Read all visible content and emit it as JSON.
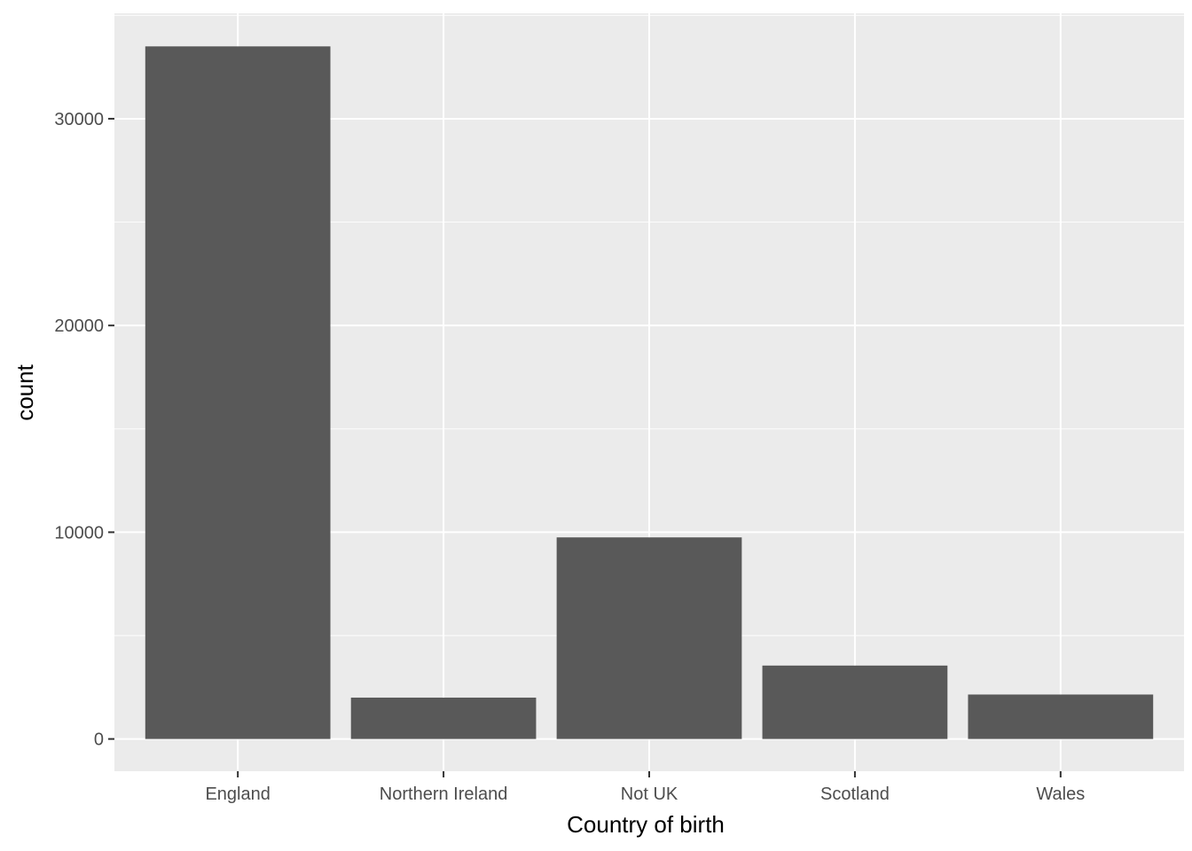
{
  "chart_data": {
    "type": "bar",
    "title": "",
    "xlabel": "Country of birth",
    "ylabel": "count",
    "categories": [
      "England",
      "Northern Ireland",
      "Not UK",
      "Scotland",
      "Wales"
    ],
    "values": [
      33500,
      2000,
      9750,
      3550,
      2150
    ],
    "ylim": [
      -1560,
      35100
    ],
    "yticks": [
      0,
      10000,
      20000,
      30000
    ],
    "ytick_labels": [
      "0",
      "10000",
      "20000",
      "30000"
    ],
    "grid": true,
    "legend": "none",
    "colors": {
      "bar": "#595959",
      "panel": "#ebebeb",
      "grid": "#ffffff",
      "tick": "#333333",
      "text": "#4d4d4d"
    }
  }
}
